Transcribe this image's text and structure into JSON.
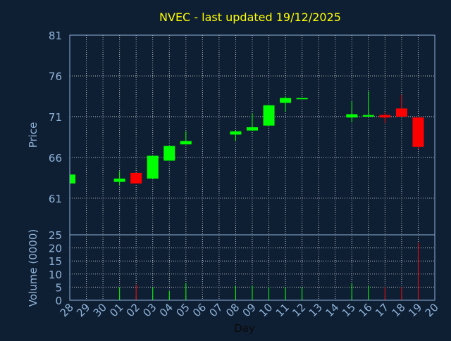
{
  "chart_data": {
    "title": "NVEC - last updated 19/12/2025",
    "xlabel": "Day",
    "colors": {
      "background": "#0f1f33",
      "grid": "#ffffff",
      "title": "#ffff00",
      "axis_text": "#8fb3d9",
      "up": "#00ff00",
      "down": "#ff0000",
      "frame": "#8fb3d9"
    },
    "x_ticks": [
      "28",
      "29",
      "30",
      "01",
      "02",
      "03",
      "04",
      "05",
      "06",
      "07",
      "08",
      "09",
      "10",
      "11",
      "12",
      "13",
      "14",
      "15",
      "16",
      "17",
      "18",
      "19",
      "20"
    ],
    "price_panel": {
      "type": "candlestick",
      "ylabel": "Price",
      "ylim": [
        56.5,
        81
      ],
      "y_ticks": [
        "81",
        "76",
        "71",
        "66",
        "61"
      ],
      "y_tick_values": [
        81,
        76,
        71,
        66,
        61
      ],
      "grid": true,
      "candles": [
        {
          "day": "28",
          "open": 62.8,
          "high": 63.9,
          "low": 62.8,
          "close": 63.9
        },
        {
          "day": "01",
          "open": 63.0,
          "high": 64.3,
          "low": 62.6,
          "close": 63.4
        },
        {
          "day": "02",
          "open": 64.1,
          "high": 64.1,
          "low": 62.8,
          "close": 62.8
        },
        {
          "day": "03",
          "open": 63.4,
          "high": 66.2,
          "low": 63.4,
          "close": 66.2
        },
        {
          "day": "04",
          "open": 65.6,
          "high": 67.4,
          "low": 65.6,
          "close": 67.4
        },
        {
          "day": "05",
          "open": 67.6,
          "high": 69.2,
          "low": 67.6,
          "close": 68.0
        },
        {
          "day": "08",
          "open": 68.8,
          "high": 69.3,
          "low": 68.0,
          "close": 69.2
        },
        {
          "day": "09",
          "open": 69.3,
          "high": 71.4,
          "low": 69.3,
          "close": 69.7
        },
        {
          "day": "10",
          "open": 69.9,
          "high": 72.4,
          "low": 69.9,
          "close": 72.4
        },
        {
          "day": "11",
          "open": 72.7,
          "high": 73.5,
          "low": 71.6,
          "close": 73.3
        },
        {
          "day": "12",
          "open": 73.2,
          "high": 73.3,
          "low": 73.2,
          "close": 73.3
        },
        {
          "day": "15",
          "open": 70.9,
          "high": 72.9,
          "low": 70.3,
          "close": 71.3
        },
        {
          "day": "16",
          "open": 71.0,
          "high": 74.1,
          "low": 71.0,
          "close": 71.2
        },
        {
          "day": "17",
          "open": 71.2,
          "high": 71.5,
          "low": 70.2,
          "close": 70.9
        },
        {
          "day": "18",
          "open": 72.0,
          "high": 73.7,
          "low": 71.0,
          "close": 71.0
        },
        {
          "day": "19",
          "open": 70.9,
          "high": 70.9,
          "low": 67.0,
          "close": 67.3
        }
      ]
    },
    "volume_panel": {
      "type": "bar",
      "ylabel": "Volume (0000)",
      "ylim": [
        0,
        25
      ],
      "y_ticks": [
        "25",
        "20",
        "15",
        "10",
        "5",
        "0"
      ],
      "y_tick_values": [
        25,
        20,
        15,
        10,
        5,
        0
      ],
      "grid": true,
      "bars": [
        {
          "day": "01",
          "value": 5,
          "dir": "up"
        },
        {
          "day": "02",
          "value": 6,
          "dir": "down"
        },
        {
          "day": "03",
          "value": 5,
          "dir": "up"
        },
        {
          "day": "04",
          "value": 3.5,
          "dir": "up"
        },
        {
          "day": "05",
          "value": 6.5,
          "dir": "up"
        },
        {
          "day": "08",
          "value": 5.5,
          "dir": "up"
        },
        {
          "day": "09",
          "value": 5.5,
          "dir": "up"
        },
        {
          "day": "10",
          "value": 5,
          "dir": "up"
        },
        {
          "day": "11",
          "value": 5,
          "dir": "up"
        },
        {
          "day": "12",
          "value": 5,
          "dir": "up"
        },
        {
          "day": "15",
          "value": 6.5,
          "dir": "up"
        },
        {
          "day": "16",
          "value": 5.5,
          "dir": "up"
        },
        {
          "day": "17",
          "value": 5,
          "dir": "down"
        },
        {
          "day": "18",
          "value": 5,
          "dir": "down"
        },
        {
          "day": "19",
          "value": 22,
          "dir": "down"
        }
      ]
    }
  }
}
